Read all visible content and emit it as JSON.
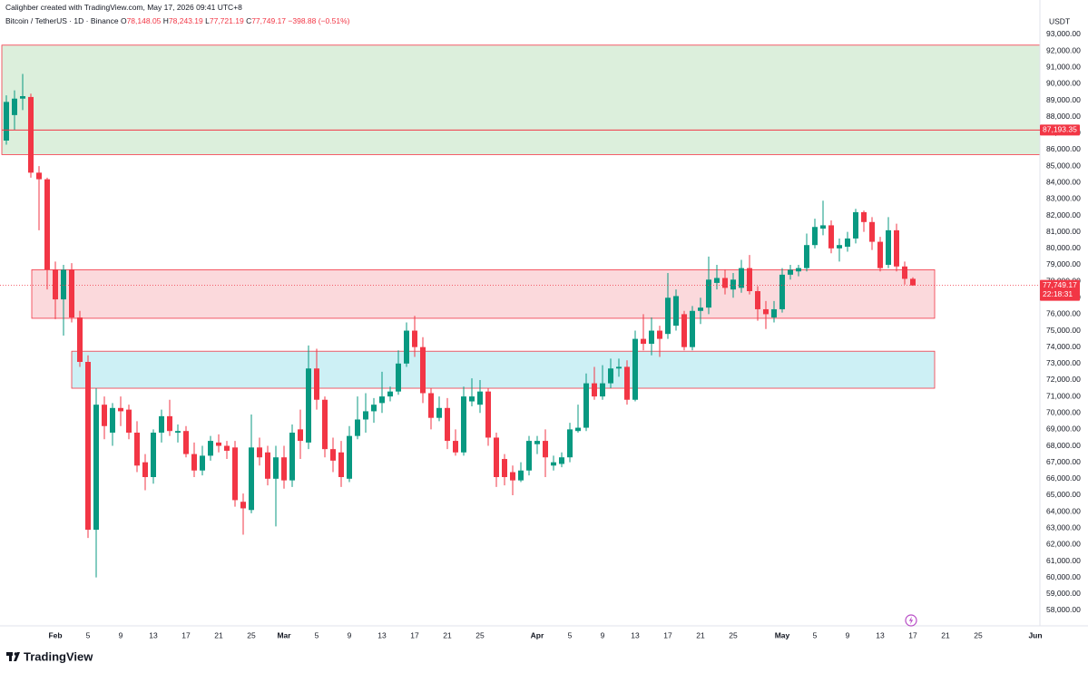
{
  "credit": "Calighber created with TradingView.com, May 17, 2026 09:41 UTC+8",
  "branding": "TradingView",
  "chart_data": {
    "type": "candlestick",
    "symbol": "Bitcoin / TetherUS · 1D · Binance",
    "legend": [
      {
        "key": "O",
        "text": "78,148.05"
      },
      {
        "key": "H",
        "text": "78,243.19"
      },
      {
        "key": "L",
        "text": "77,721.19"
      },
      {
        "key": "C",
        "text": "77,749.17"
      }
    ],
    "change": "−398.88 (−0.51%)",
    "currency": "USDT",
    "up_color": "#089981",
    "down_color": "#f23645",
    "grid": false,
    "categories": [
      null,
      null,
      null,
      null,
      null,
      null,
      "Feb",
      null,
      null,
      null,
      "5",
      null,
      null,
      null,
      "9",
      null,
      null,
      null,
      "13",
      null,
      null,
      null,
      "17",
      null,
      null,
      null,
      "21",
      null,
      null,
      null,
      "25",
      null,
      null,
      null,
      "Mar",
      null,
      null,
      null,
      "5",
      null,
      null,
      null,
      "9",
      null,
      null,
      null,
      "13",
      null,
      null,
      null,
      "17",
      null,
      null,
      null,
      "21",
      null,
      null,
      null,
      "25",
      null,
      null,
      null,
      null,
      null,
      null,
      "Apr",
      null,
      null,
      null,
      "5",
      null,
      null,
      null,
      "9",
      null,
      null,
      null,
      "13",
      null,
      null,
      null,
      "17",
      null,
      null,
      null,
      "21",
      null,
      null,
      null,
      "25",
      null,
      null,
      null,
      null,
      null,
      "May",
      null,
      null,
      null,
      "5",
      null,
      null,
      null,
      "9",
      null,
      null,
      null,
      "13",
      null,
      null,
      null,
      "17",
      null,
      null,
      null,
      "21",
      null,
      null,
      null,
      "25",
      null,
      null,
      null,
      null,
      null,
      null,
      "Jun"
    ],
    "open": [
      86550,
      88100,
      89100,
      89200,
      84600,
      84200,
      78700,
      76900,
      78700,
      75800,
      73100,
      62900,
      70500,
      68800,
      70300,
      70200,
      68800,
      67000,
      66100,
      68800,
      69800,
      68800,
      68900,
      67500,
      66500,
      67400,
      68200,
      68000,
      67900,
      64600,
      64100,
      67900,
      67600,
      66000,
      67300,
      65900,
      69000,
      68200,
      72700,
      70800,
      67800,
      67600,
      66000,
      68600,
      69600,
      70100,
      70600,
      71000,
      71300,
      73000,
      75000,
      74000,
      71200,
      69700,
      70300,
      68300,
      67600,
      70700,
      70500,
      71300,
      68500,
      67200,
      66400,
      65900,
      66500,
      68100,
      68300,
      66800,
      66900,
      67300,
      68900,
      69100,
      71800,
      71000,
      71800,
      72700,
      72800,
      70800,
      74500,
      74200,
      75000,
      74800,
      75300,
      76000,
      74000,
      76200,
      76400,
      77900,
      78200,
      77500,
      77600,
      78800,
      77400,
      76300,
      75800,
      76300,
      78400,
      78600,
      78800,
      80200,
      81200,
      81400,
      80000,
      80100,
      80600,
      82200,
      81600,
      80400,
      79000,
      81100,
      78900,
      78148.05,
      null,
      null,
      null,
      null,
      null,
      null,
      null,
      null,
      null,
      null,
      null,
      null,
      null,
      null,
      null
    ],
    "high": [
      89300,
      89600,
      90600,
      89400,
      85000,
      84300,
      79200,
      79000,
      79100,
      76200,
      73500,
      71500,
      71000,
      70600,
      71000,
      70500,
      69500,
      67500,
      69000,
      70200,
      70800,
      69300,
      69200,
      68200,
      68000,
      68600,
      68700,
      68300,
      68300,
      65100,
      69900,
      68500,
      68000,
      68000,
      68000,
      69300,
      70200,
      74100,
      73900,
      71000,
      68500,
      68300,
      69200,
      71000,
      71200,
      70900,
      72500,
      71600,
      73800,
      75500,
      75900,
      74600,
      71500,
      71000,
      70900,
      69000,
      71600,
      72100,
      72000,
      71500,
      68800,
      67500,
      66800,
      67000,
      68600,
      68600,
      69000,
      67400,
      67600,
      69400,
      70500,
      72400,
      72800,
      72900,
      73300,
      73300,
      73200,
      75000,
      76000,
      75800,
      75300,
      78500,
      77500,
      76200,
      76500,
      77000,
      79500,
      79000,
      78700,
      78500,
      79300,
      79600,
      77700,
      76800,
      76800,
      78800,
      79000,
      79000,
      80900,
      81800,
      82900,
      81700,
      80600,
      81000,
      82400,
      82300,
      81900,
      80700,
      81900,
      81500,
      79200,
      78243.19,
      null,
      null,
      null,
      null,
      null,
      null,
      null,
      null,
      null,
      null,
      null,
      null,
      null,
      null,
      null
    ],
    "low": [
      86300,
      87200,
      88400,
      84300,
      81100,
      77500,
      75700,
      74700,
      75500,
      72800,
      62400,
      60000,
      68400,
      68000,
      69200,
      68400,
      66400,
      65300,
      65700,
      68200,
      68600,
      68200,
      67300,
      66100,
      66200,
      67100,
      67600,
      67200,
      64300,
      62600,
      63900,
      66800,
      65600,
      63100,
      65400,
      65500,
      67200,
      67800,
      70200,
      67300,
      66400,
      65500,
      65800,
      68400,
      68800,
      69400,
      70000,
      70700,
      71100,
      72800,
      73400,
      70600,
      69000,
      69500,
      67800,
      67400,
      67400,
      70400,
      70000,
      68000,
      65500,
      65600,
      65000,
      65800,
      66200,
      67500,
      66100,
      66500,
      66700,
      67000,
      68800,
      68900,
      70800,
      70800,
      71500,
      72200,
      70500,
      70700,
      73800,
      73500,
      73400,
      74500,
      75000,
      73800,
      73800,
      75400,
      76000,
      77500,
      77200,
      77000,
      77300,
      77200,
      75600,
      75100,
      75500,
      76100,
      78100,
      78300,
      78600,
      80000,
      80800,
      79700,
      79200,
      79800,
      80300,
      81000,
      79900,
      78600,
      78800,
      78600,
      77800,
      77721.19,
      null,
      null,
      null,
      null,
      null,
      null,
      null,
      null,
      null,
      null,
      null,
      null,
      null,
      null,
      null
    ],
    "close": [
      88900,
      89100,
      89250,
      84600,
      84200,
      78700,
      76900,
      78700,
      75800,
      73100,
      62900,
      70500,
      69200,
      70300,
      70100,
      68800,
      66800,
      66100,
      68800,
      69800,
      68900,
      68900,
      67500,
      66500,
      67400,
      68300,
      68000,
      67700,
      64700,
      64200,
      67900,
      67300,
      66000,
      67300,
      65900,
      68800,
      68300,
      72700,
      70800,
      67800,
      67100,
      66100,
      68600,
      69600,
      70100,
      70500,
      71000,
      71300,
      73000,
      75000,
      74000,
      71200,
      69700,
      70300,
      68300,
      67600,
      71000,
      71000,
      71300,
      68500,
      66100,
      66100,
      65900,
      66500,
      68300,
      68300,
      67300,
      67000,
      67300,
      69000,
      69100,
      71800,
      71000,
      71800,
      72700,
      72800,
      70800,
      74500,
      74200,
      75000,
      74500,
      77000,
      77100,
      74000,
      76200,
      76400,
      78100,
      78200,
      77600,
      78100,
      78800,
      77400,
      76300,
      76000,
      76300,
      78400,
      78700,
      78800,
      80200,
      81300,
      81400,
      80000,
      80200,
      80600,
      82200,
      81600,
      80400,
      78800,
      81100,
      78900,
      78148.05,
      77749.17,
      null,
      null,
      null,
      null,
      null,
      null,
      null,
      null,
      null,
      null,
      null,
      null,
      null,
      null,
      null
    ],
    "ylim": [
      57060,
      93440
    ],
    "yticks": [
      {
        "value": 58000,
        "label": "58,000.00"
      },
      {
        "value": 59000,
        "label": "59,000.00"
      },
      {
        "value": 60000,
        "label": "60,000.00"
      },
      {
        "value": 61000,
        "label": "61,000.00"
      },
      {
        "value": 62000,
        "label": "62,000.00"
      },
      {
        "value": 63000,
        "label": "63,000.00"
      },
      {
        "value": 64000,
        "label": "64,000.00"
      },
      {
        "value": 65000,
        "label": "65,000.00"
      },
      {
        "value": 66000,
        "label": "66,000.00"
      },
      {
        "value": 67000,
        "label": "67,000.00"
      },
      {
        "value": 68000,
        "label": "68,000.00"
      },
      {
        "value": 69000,
        "label": "69,000.00"
      },
      {
        "value": 70000,
        "label": "70,000.00"
      },
      {
        "value": 71000,
        "label": "71,000.00"
      },
      {
        "value": 72000,
        "label": "72,000.00"
      },
      {
        "value": 73000,
        "label": "73,000.00"
      },
      {
        "value": 74000,
        "label": "74,000.00"
      },
      {
        "value": 75000,
        "label": "75,000.00"
      },
      {
        "value": 76000,
        "label": "76,000.00"
      },
      {
        "value": 77000,
        "label": "77,000.00"
      },
      {
        "value": 78000,
        "label": "78,000.00"
      },
      {
        "value": 79000,
        "label": "79,000.00"
      },
      {
        "value": 80000,
        "label": "80,000.00"
      },
      {
        "value": 81000,
        "label": "81,000.00"
      },
      {
        "value": 82000,
        "label": "82,000.00"
      },
      {
        "value": 83000,
        "label": "83,000.00"
      },
      {
        "value": 84000,
        "label": "84,000.00"
      },
      {
        "value": 85000,
        "label": "85,000.00"
      },
      {
        "value": 86000,
        "label": "86,000.00"
      },
      {
        "value": 87000,
        "label": "87,000.00"
      },
      {
        "value": 88000,
        "label": "88,000.00"
      },
      {
        "value": 89000,
        "label": "89,000.00"
      },
      {
        "value": 90000,
        "label": "90,000.00"
      },
      {
        "value": 91000,
        "label": "91,000.00"
      },
      {
        "value": 92000,
        "label": "92,000.00"
      },
      {
        "value": 93000,
        "label": "93,000.00"
      }
    ],
    "zones": [
      {
        "range": [
          85700,
          92350
        ],
        "color": "#dcefdc"
      },
      {
        "range": [
          75750,
          78700
        ],
        "color": "#fbd9dc"
      },
      {
        "range": [
          71500,
          73750
        ],
        "color": "#cdf0f5"
      }
    ],
    "price_line": {
      "value": 87193.35,
      "label": "87,193.35"
    },
    "last_price": {
      "value": 77749.17,
      "label": "77,749.17",
      "countdown": "22:18:31"
    }
  }
}
